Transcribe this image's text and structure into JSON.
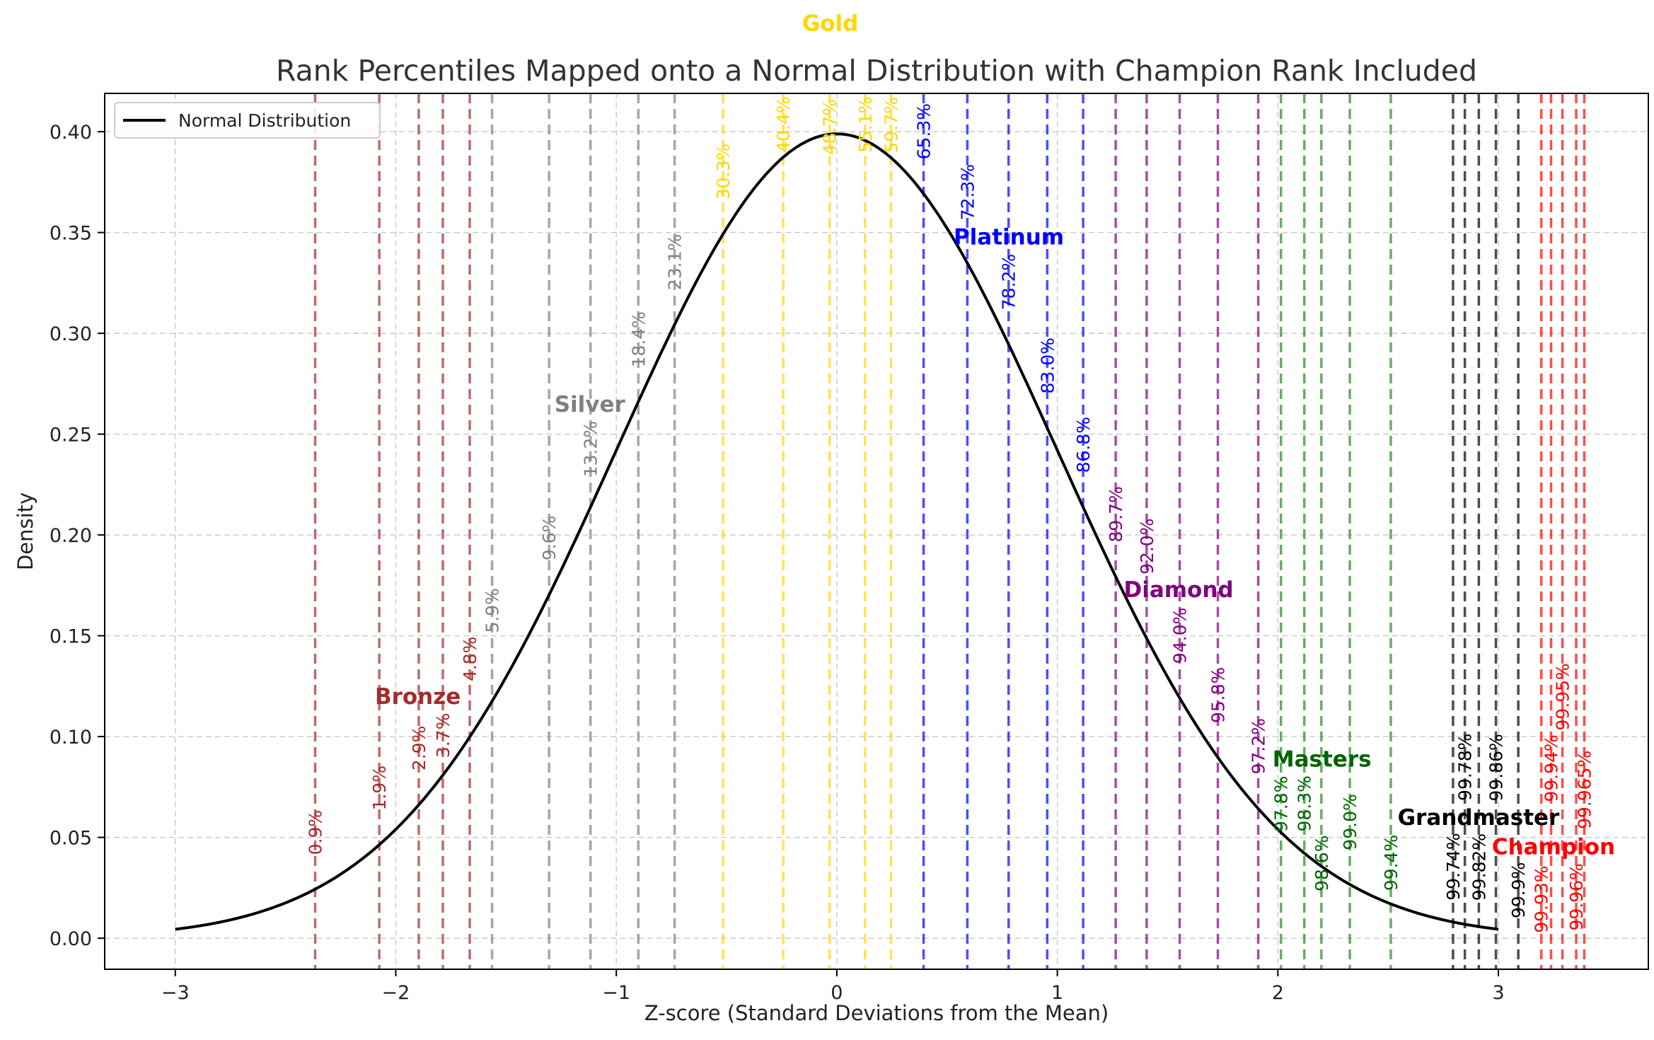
{
  "chart_data": {
    "type": "line",
    "title": "Rank Percentiles Mapped onto a Normal Distribution with Champion Rank Included",
    "xlabel": "Z-score (Standard Deviations from the Mean)",
    "ylabel": "Density",
    "xlim": [
      -3.32,
      3.68
    ],
    "ylim": [
      -0.0154,
      0.419
    ],
    "xticks": [
      -3,
      -2,
      -1,
      0,
      1,
      2,
      3
    ],
    "xtick_labels": [
      "−3",
      "−2",
      "−1",
      "0",
      "1",
      "2",
      "3"
    ],
    "yticks": [
      0,
      0.05,
      0.1,
      0.15,
      0.2,
      0.25,
      0.3,
      0.35,
      0.4
    ],
    "ytick_labels": [
      "0.00",
      "0.05",
      "0.10",
      "0.15",
      "0.20",
      "0.25",
      "0.30",
      "0.35",
      "0.40"
    ],
    "grid": true,
    "legend": {
      "placement": "top-left",
      "entries": [
        "Normal Distribution"
      ]
    },
    "series": [
      {
        "name": "Normal Distribution",
        "kind": "normal-pdf",
        "mean": 0,
        "std": 1,
        "x_range": [
          -3,
          3
        ],
        "color": "#000000"
      }
    ],
    "ranks": [
      {
        "name": "Bronze",
        "color": "#a52a2a",
        "label_x": -1.9,
        "label_y": 0.12,
        "percentiles": [
          0.9,
          1.9,
          2.9,
          3.7,
          4.8
        ],
        "labels": [
          "0.9%",
          "1.9%",
          "2.9%",
          "3.7%",
          "4.8%"
        ]
      },
      {
        "name": "Silver",
        "color": "#808080",
        "label_x": -1.12,
        "label_y": 0.265,
        "percentiles": [
          5.9,
          9.6,
          13.2,
          18.4,
          23.1
        ],
        "labels": [
          "5.9%",
          "9.6%",
          "13.2%",
          "18.4%",
          "23.1%"
        ]
      },
      {
        "name": "Gold",
        "color": "#ffd700",
        "label_x": -0.03,
        "label_y": 0.454,
        "percentiles": [
          30.3,
          40.4,
          48.7,
          55.1,
          59.7
        ],
        "labels": [
          "30.3%",
          "40.4%",
          "48.7%",
          "55.1%",
          "59.7%"
        ]
      },
      {
        "name": "Platinum",
        "color": "#0000ff",
        "label_x": 0.78,
        "label_y": 0.348,
        "percentiles": [
          65.3,
          72.3,
          78.2,
          83.0,
          86.8
        ],
        "labels": [
          "65.3%",
          "72.3%",
          "78.2%",
          "83.0%",
          "86.8%"
        ]
      },
      {
        "name": "Diamond",
        "color": "#800080",
        "label_x": 1.55,
        "label_y": 0.173,
        "percentiles": [
          89.7,
          92.0,
          94.0,
          95.8,
          97.2
        ],
        "labels": [
          "89.7%",
          "92.0%",
          "94.0%",
          "95.8%",
          "97.2%"
        ]
      },
      {
        "name": "Masters",
        "color": "#006400",
        "line_color": "#228b22",
        "label_x": 2.2,
        "label_y": 0.089,
        "percentiles": [
          97.8,
          98.3,
          98.6,
          99.0,
          99.4
        ],
        "labels": [
          "97.8%",
          "98.3%",
          "98.6%",
          "99.0%",
          "99.4%"
        ]
      },
      {
        "name": "Grandmaster",
        "color": "#000000",
        "label_x": 2.91,
        "label_y": 0.06,
        "percentiles": [
          99.74,
          99.78,
          99.82,
          99.86,
          99.9
        ],
        "labels": [
          "99.74%",
          "99.78%",
          "99.82%",
          "99.86%",
          "99.9%"
        ]
      },
      {
        "name": "Champion",
        "color": "#ff0000",
        "label_x": 3.25,
        "label_y": 0.056,
        "percentiles": [
          99.93,
          99.94,
          99.95,
          99.96,
          99.965
        ],
        "labels": [
          "99.93%",
          "99.94%",
          "99.95%",
          "99.96%",
          "99.965%"
        ]
      }
    ]
  }
}
